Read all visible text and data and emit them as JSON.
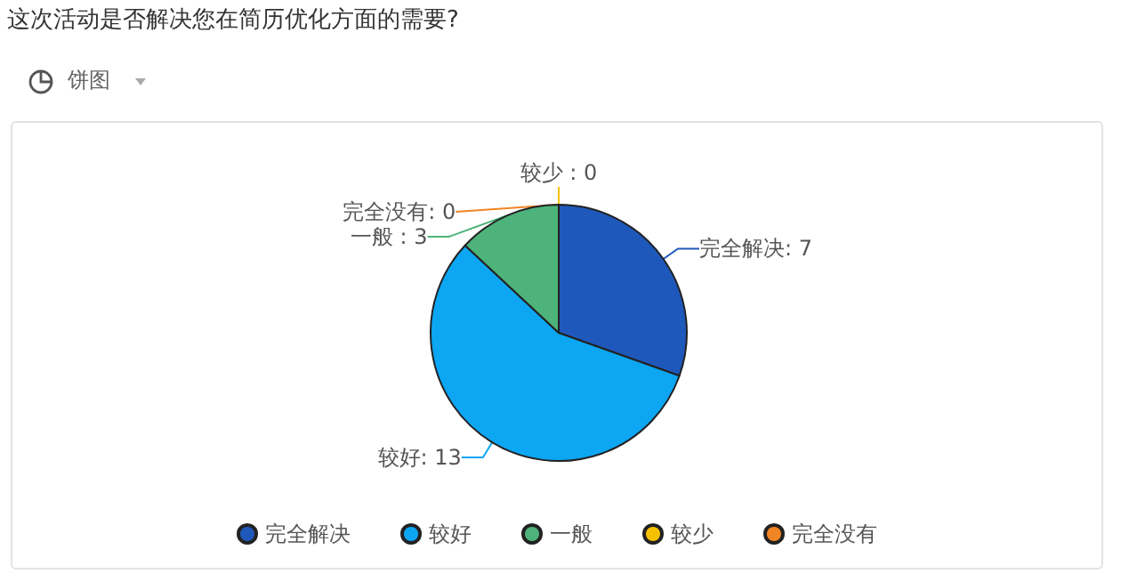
{
  "chart_data": {
    "type": "pie",
    "title": "这次活动是否解决您在简历优化方面的需要?",
    "annotations": [
      "饼图"
    ],
    "categories": [
      "完全解决",
      "较好",
      "一般",
      "较少",
      "完全没有"
    ],
    "values": [
      7,
      13,
      3,
      0,
      0
    ],
    "colors": [
      "#1f58bb",
      "#0ca6f3",
      "#4db37a",
      "#f6c100",
      "#f08524"
    ],
    "value_labels": [
      "完全解决: 7",
      "较好: 13",
      "一般 : 3",
      "较少 : 0",
      "完全没有: 0"
    ],
    "legend": "bottom"
  }
}
